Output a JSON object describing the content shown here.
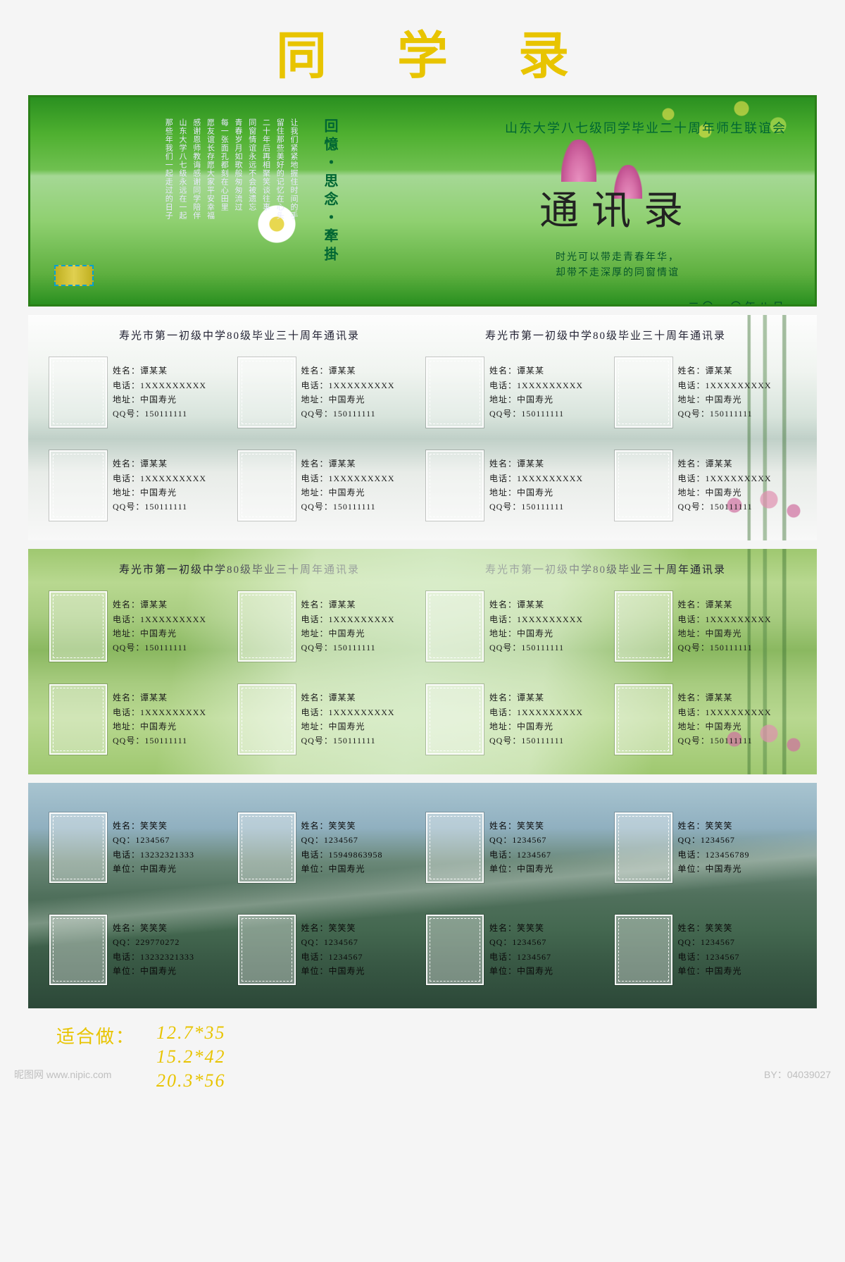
{
  "title": "同学录",
  "cover": {
    "university_line": "山东大学八七级同学毕业二十周年师生联谊会",
    "book_title": "通讯录",
    "subtitle_line1": "时光可以带走青春年华，",
    "subtitle_line2": "却带不走深厚的同窗情谊",
    "date": "二〇一〇年八月",
    "spine": "回憶・思念・牽掛",
    "poem_cols": [
      "让我们紧紧地握住时间的手",
      "留住那些美好的记忆在心头",
      "二十年后再相聚笑谈往事",
      "同窗情谊永远不会被遗忘",
      "青春岁月如歌般匆匆流过",
      "每一张面孔都刻在心田里",
      "愿友谊长存愿大家平安幸福",
      "感谢恩师教诲感谢同学陪伴",
      "山东大学八七级永远在一起",
      "那些年我们一起走过的日子"
    ]
  },
  "panel_header": "寿光市第一初级中学80级毕业三十周年通讯录",
  "labels_a": {
    "name": "姓名",
    "phone": "电话",
    "addr": "地址",
    "qq": "QQ号"
  },
  "labels_b": {
    "name": "姓名",
    "qq": "QQ",
    "phone": "电话",
    "unit": "单位"
  },
  "sample_a": {
    "name": "谭某某",
    "phone": "1XXXXXXXXX",
    "addr": "中国寿光",
    "qq": "150111111"
  },
  "panel3_rows": [
    {
      "name": "笑笑笑",
      "qq": "1234567",
      "phone": "13232321333",
      "unit": "中国寿光"
    },
    {
      "name": "笑笑笑",
      "qq": "1234567",
      "phone": "15949863958",
      "unit": "中国寿光"
    },
    {
      "name": "笑笑笑",
      "qq": "1234567",
      "phone": "1234567",
      "unit": "中国寿光"
    },
    {
      "name": "笑笑笑",
      "qq": "1234567",
      "phone": "123456789",
      "unit": "中国寿光"
    },
    {
      "name": "笑笑笑",
      "qq": "229770272",
      "phone": "13232321333",
      "unit": "中国寿光"
    },
    {
      "name": "笑笑笑",
      "qq": "1234567",
      "phone": "1234567",
      "unit": "中国寿光"
    },
    {
      "name": "笑笑笑",
      "qq": "1234567",
      "phone": "1234567",
      "unit": "中国寿光"
    },
    {
      "name": "笑笑笑",
      "qq": "1234567",
      "phone": "1234567",
      "unit": "中国寿光"
    }
  ],
  "footer": {
    "label": "适合做：",
    "sizes": [
      "12.7*35",
      "15.2*42",
      "20.3*56"
    ]
  },
  "watermark": {
    "left": "昵图网 www.nipic.com",
    "right": "BY：04039027"
  },
  "colors": {
    "title": "#e8c400",
    "cover_border": "#2a8018",
    "cover_text_dark": "#063",
    "footer": "#e8c400",
    "wm": "#bfbfbf"
  }
}
